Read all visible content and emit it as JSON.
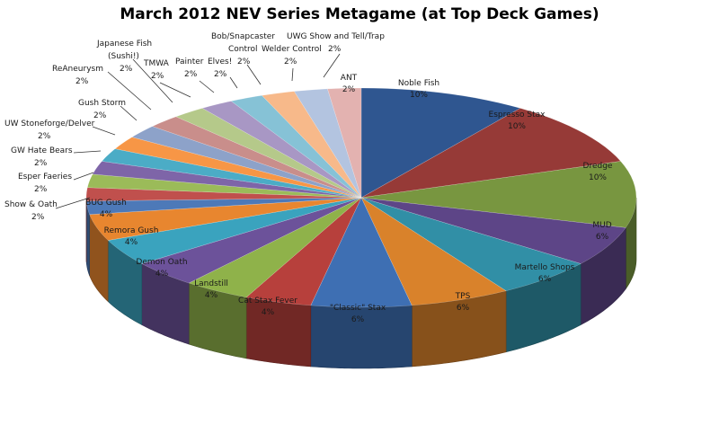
{
  "chart_data": {
    "type": "pie",
    "title": "March 2012 NEV Series Metagame (at Top Deck Games)",
    "style": "3d",
    "slices": [
      {
        "label": "Noble Fish",
        "value": 10,
        "value_label": "10%",
        "color": "#2f5690"
      },
      {
        "label": "Espresso Stax",
        "value": 10,
        "value_label": "10%",
        "color": "#963a37"
      },
      {
        "label": "Dredge",
        "value": 10,
        "value_label": "10%",
        "color": "#789640"
      },
      {
        "label": "MUD",
        "value": 6,
        "value_label": "6%",
        "color": "#5d4587"
      },
      {
        "label": "Martello Shops",
        "value": 6,
        "value_label": "6%",
        "color": "#318fa6"
      },
      {
        "label": "TPS",
        "value": 6,
        "value_label": "6%",
        "color": "#d9822b"
      },
      {
        "label": "\"Classic\" Stax",
        "value": 6,
        "value_label": "6%",
        "color": "#3e6fb3"
      },
      {
        "label": "Cat Stax Fever",
        "value": 4,
        "value_label": "4%",
        "color": "#b7403c"
      },
      {
        "label": "Landstill",
        "value": 4,
        "value_label": "4%",
        "color": "#8fb24a"
      },
      {
        "label": "Demon Oath",
        "value": 4,
        "value_label": "4%",
        "color": "#6c529a"
      },
      {
        "label": "Remora Gush",
        "value": 4,
        "value_label": "4%",
        "color": "#3aa3be"
      },
      {
        "label": "BUG Gush",
        "value": 4,
        "value_label": "4%",
        "color": "#e8862f"
      },
      {
        "label": "Show & Oath",
        "value": 2,
        "value_label": "2%",
        "color": "#4d79b8"
      },
      {
        "label": "Esper Faeries",
        "value": 2,
        "value_label": "2%",
        "color": "#c0504d"
      },
      {
        "label": "GW Hate Bears",
        "value": 2,
        "value_label": "2%",
        "color": "#9bbb59"
      },
      {
        "label": "UW Stoneforge/Delver",
        "value": 2,
        "value_label": "2%",
        "color": "#7e65a8"
      },
      {
        "label": "Gush Storm",
        "value": 2,
        "value_label": "2%",
        "color": "#4bacc6"
      },
      {
        "label": "ReAneurysm",
        "value": 2,
        "value_label": "2%",
        "color": "#f79646"
      },
      {
        "label": "Japanese Fish (Sushi!)",
        "value": 2,
        "value_label": "2%",
        "color": "#8da2c9"
      },
      {
        "label": "TMWA",
        "value": 2,
        "value_label": "2%",
        "color": "#c98e8b"
      },
      {
        "label": "Painter",
        "value": 2,
        "value_label": "2%",
        "color": "#b5c98a"
      },
      {
        "label": "Elves!",
        "value": 2,
        "value_label": "2%",
        "color": "#a897c4"
      },
      {
        "label": "Bob/Snapcaster Control",
        "value": 2,
        "value_label": "2%",
        "color": "#86c2d6"
      },
      {
        "label": "Welder Control",
        "value": 2,
        "value_label": "2%",
        "color": "#f7b98a"
      },
      {
        "label": "UWG Show and Tell/Trap",
        "value": 2,
        "value_label": "2%",
        "color": "#b3c4e0"
      },
      {
        "label": "ANT",
        "value": 2,
        "value_label": "2%",
        "color": "#e3b2b0"
      }
    ]
  }
}
